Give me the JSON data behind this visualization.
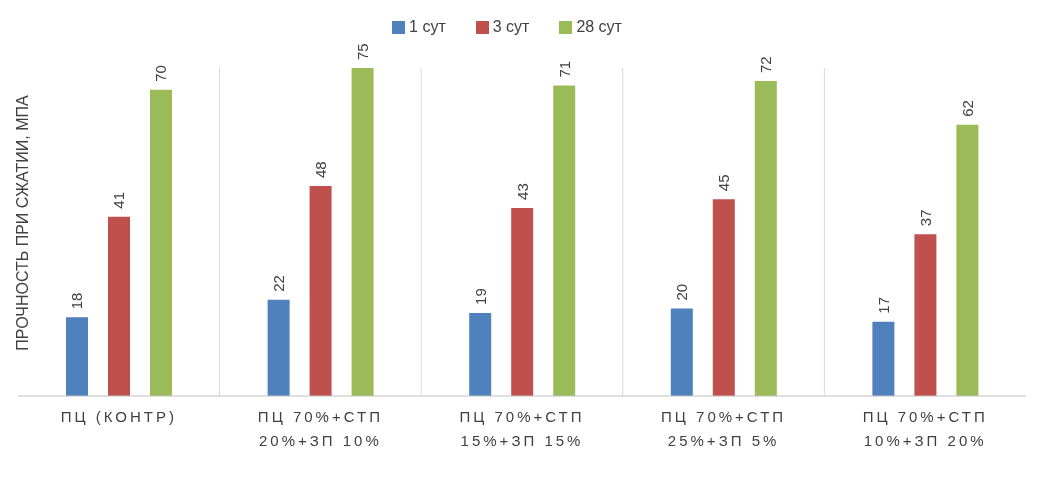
{
  "chart_data": {
    "type": "bar",
    "ylabel": "ПРОЧНОСТЬ ПРИ СЖАТИИ, МПА",
    "categories": [
      "ПЦ (КОНТР)",
      "ПЦ 70%+СТП 20%+ЗП 10%",
      "ПЦ 70%+СТП 15%+ЗП 15%",
      "ПЦ 70%+СТП 25%+ЗП 5%",
      "ПЦ 70%+СТП 10%+ЗП 20%"
    ],
    "series": [
      {
        "name": "1 сут",
        "color": "#4f81bd",
        "values": [
          18,
          22,
          19,
          20,
          17
        ]
      },
      {
        "name": "3 сут",
        "color": "#c0504d",
        "values": [
          41,
          48,
          43,
          45,
          37
        ]
      },
      {
        "name": "28 сут",
        "color": "#9bbb59",
        "values": [
          70,
          75,
          71,
          72,
          62
        ]
      }
    ],
    "data_labels": true,
    "grid": "x",
    "legend": "top"
  }
}
